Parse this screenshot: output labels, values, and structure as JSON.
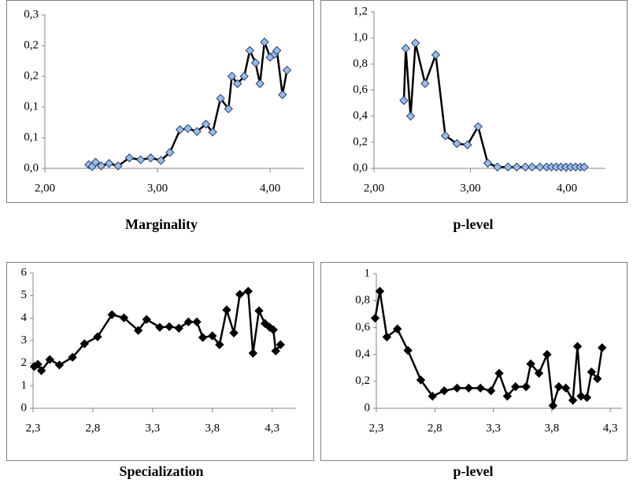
{
  "chart_data": [
    {
      "type": "line",
      "title": "Marginality",
      "color": "#000000",
      "marker_color": "#9dbbe3",
      "marker_edge": "#1f3f73",
      "grid": false,
      "x": [
        2.39,
        2.42,
        2.45,
        2.5,
        2.57,
        2.65,
        2.75,
        2.85,
        2.94,
        3.03,
        3.11,
        3.2,
        3.27,
        3.35,
        3.43,
        3.49,
        3.56,
        3.63,
        3.66,
        3.71,
        3.77,
        3.82,
        3.87,
        3.91,
        3.95,
        4.0,
        4.04,
        4.06,
        4.11,
        4.15
      ],
      "values": [
        0.006,
        0.003,
        0.01,
        0.004,
        0.008,
        0.004,
        0.017,
        0.014,
        0.017,
        0.013,
        0.026,
        0.063,
        0.065,
        0.06,
        0.072,
        0.059,
        0.114,
        0.097,
        0.15,
        0.138,
        0.15,
        0.192,
        0.172,
        0.138,
        0.206,
        0.181,
        0.186,
        0.192,
        0.12,
        0.16
      ],
      "xlim": [
        2,
        4.3
      ],
      "ylim": [
        0,
        0.25
      ],
      "xticks": [
        {
          "value": 2,
          "label": "2,00"
        },
        {
          "value": 3,
          "label": "3,00"
        },
        {
          "value": 4,
          "label": "4,00"
        }
      ],
      "yticks": [
        {
          "value": 0,
          "label": "0,0"
        },
        {
          "value": 0.05,
          "label": "0,1"
        },
        {
          "value": 0.1,
          "label": "0,1"
        },
        {
          "value": 0.15,
          "label": "0,2"
        },
        {
          "value": 0.2,
          "label": "0,2"
        },
        {
          "value": 0.25,
          "label": "0,3"
        }
      ]
    },
    {
      "type": "line",
      "title": "p-level",
      "color": "#000000",
      "marker_color": "#9dbbe3",
      "marker_edge": "#1f3f73",
      "grid": false,
      "x": [
        2.31,
        2.33,
        2.38,
        2.43,
        2.53,
        2.64,
        2.74,
        2.86,
        2.97,
        3.08,
        3.18,
        3.28,
        3.39,
        3.48,
        3.57,
        3.64,
        3.72,
        3.79,
        3.84,
        3.89,
        3.94,
        3.99,
        4.04,
        4.09,
        4.14,
        4.18
      ],
      "values": [
        0.52,
        0.92,
        0.4,
        0.96,
        0.65,
        0.87,
        0.25,
        0.19,
        0.18,
        0.32,
        0.04,
        0.01,
        0.01,
        0.01,
        0.01,
        0.01,
        0.01,
        0.01,
        0.01,
        0.01,
        0.01,
        0.01,
        0.01,
        0.01,
        0.01,
        0.01
      ],
      "xlim": [
        2,
        4.4
      ],
      "ylim": [
        0,
        1.2
      ],
      "xticks": [
        {
          "value": 2,
          "label": "2,00"
        },
        {
          "value": 3,
          "label": "3,00"
        },
        {
          "value": 4,
          "label": "4,00"
        }
      ],
      "yticks": [
        {
          "value": 0,
          "label": "0,0"
        },
        {
          "value": 0.2,
          "label": "0,2"
        },
        {
          "value": 0.4,
          "label": "0,4"
        },
        {
          "value": 0.6,
          "label": "0,6"
        },
        {
          "value": 0.8,
          "label": "0,8"
        },
        {
          "value": 1,
          "label": "1,0"
        },
        {
          "value": 1.2,
          "label": "1,2"
        }
      ]
    },
    {
      "type": "line",
      "title": "Specialization",
      "color": "#000000",
      "marker_color": "#000000",
      "marker_edge": "#000000",
      "grid": false,
      "x": [
        2.31,
        2.34,
        2.37,
        2.44,
        2.52,
        2.63,
        2.73,
        2.84,
        2.96,
        3.06,
        3.18,
        3.25,
        3.36,
        3.44,
        3.52,
        3.6,
        3.67,
        3.72,
        3.8,
        3.86,
        3.92,
        3.98,
        4.03,
        4.1,
        4.14,
        4.19,
        4.24,
        4.28,
        4.31,
        4.33,
        4.37
      ],
      "values": [
        1.85,
        1.95,
        1.67,
        2.16,
        1.92,
        2.26,
        2.86,
        3.17,
        4.15,
        4.01,
        3.45,
        3.94,
        3.59,
        3.62,
        3.55,
        3.83,
        3.83,
        3.14,
        3.21,
        2.82,
        4.36,
        3.34,
        5.05,
        5.19,
        2.44,
        4.32,
        3.76,
        3.59,
        3.48,
        2.54,
        2.82
      ],
      "xlim": [
        2.3,
        4.5
      ],
      "ylim": [
        0,
        6
      ],
      "xticks": [
        {
          "value": 2.3,
          "label": "2,3"
        },
        {
          "value": 2.8,
          "label": "2,8"
        },
        {
          "value": 3.3,
          "label": "3,3"
        },
        {
          "value": 3.8,
          "label": "3,8"
        },
        {
          "value": 4.3,
          "label": "4,3"
        }
      ],
      "yticks": [
        0,
        1,
        2,
        3,
        4,
        5,
        6
      ]
    },
    {
      "type": "line",
      "title": "p-level",
      "color": "#000000",
      "marker_color": "#000000",
      "marker_edge": "#000000",
      "grid": false,
      "x": [
        2.29,
        2.33,
        2.39,
        2.48,
        2.57,
        2.68,
        2.78,
        2.88,
        2.99,
        3.09,
        3.19,
        3.28,
        3.35,
        3.42,
        3.49,
        3.58,
        3.62,
        3.69,
        3.76,
        3.81,
        3.86,
        3.92,
        3.98,
        4.02,
        4.05,
        4.1,
        4.14,
        4.19,
        4.23
      ],
      "values": [
        0.67,
        0.87,
        0.53,
        0.59,
        0.43,
        0.21,
        0.09,
        0.13,
        0.15,
        0.15,
        0.15,
        0.13,
        0.26,
        0.09,
        0.16,
        0.16,
        0.33,
        0.26,
        0.4,
        0.02,
        0.16,
        0.15,
        0.06,
        0.46,
        0.09,
        0.08,
        0.27,
        0.22,
        0.45
      ],
      "xlim": [
        2.3,
        4.4
      ],
      "ylim": [
        0,
        1
      ],
      "xticks": [
        {
          "value": 2.3,
          "label": "2,3"
        },
        {
          "value": 2.8,
          "label": "2,8"
        },
        {
          "value": 3.3,
          "label": "3,3"
        },
        {
          "value": 3.8,
          "label": "3,8"
        },
        {
          "value": 4.3,
          "label": "4,3"
        }
      ],
      "yticks": [
        0,
        {
          "value": 0.2,
          "label": "0,2"
        },
        {
          "value": 0.4,
          "label": "0,4"
        },
        {
          "value": 0.6,
          "label": "0,6"
        },
        {
          "value": 0.8,
          "label": "0,8"
        },
        1
      ]
    }
  ]
}
